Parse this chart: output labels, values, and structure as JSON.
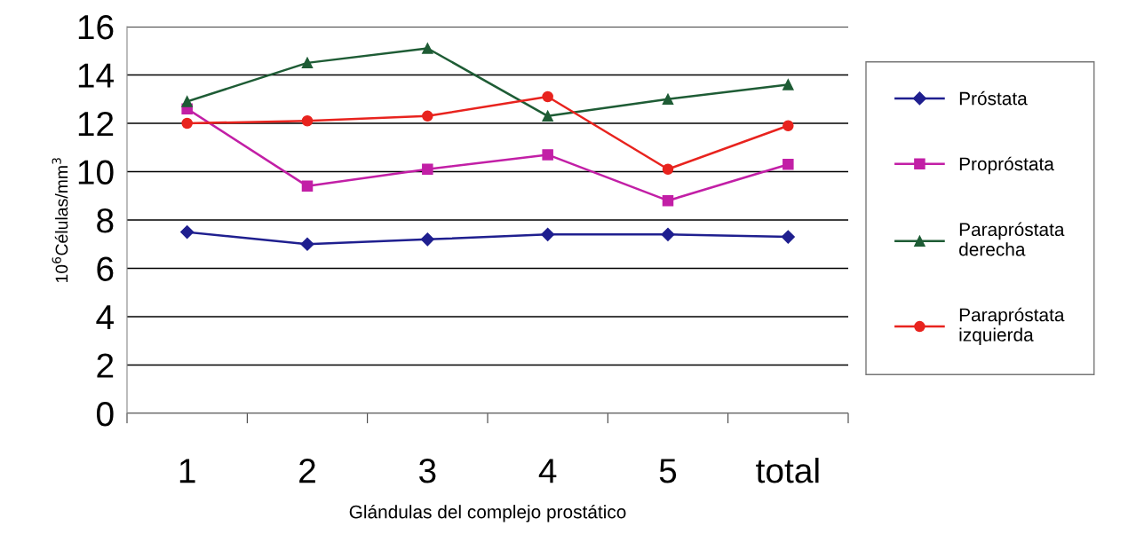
{
  "chart_data": {
    "type": "line",
    "xlabel": "Glándulas del complejo prostático",
    "ylabel": "10$^{6}$Células/mm$^{3}$",
    "categories": [
      "1",
      "2",
      "3",
      "4",
      "5",
      "total"
    ],
    "ylim": [
      0,
      16
    ],
    "yticks": [
      0,
      2,
      4,
      6,
      8,
      10,
      12,
      14,
      16
    ],
    "grid": "y",
    "legend": "right",
    "series": [
      {
        "name": "Próstata",
        "color": "#1f1f8f",
        "marker": "diamond",
        "values": [
          7.5,
          7.0,
          7.2,
          7.4,
          7.4,
          7.3
        ]
      },
      {
        "name": "Propróstata",
        "color": "#c21fa6",
        "marker": "square",
        "values": [
          12.6,
          9.4,
          10.1,
          10.7,
          8.8,
          10.3
        ]
      },
      {
        "name": "Parapróstata\nderecha",
        "color": "#1e5c35",
        "marker": "triangle",
        "values": [
          12.9,
          14.5,
          15.1,
          12.3,
          13.0,
          13.6
        ]
      },
      {
        "name": "Parapróstata\nizquierda",
        "color": "#e8231e",
        "marker": "circle",
        "values": [
          12.0,
          12.1,
          12.3,
          13.1,
          10.1,
          11.9
        ]
      }
    ]
  }
}
